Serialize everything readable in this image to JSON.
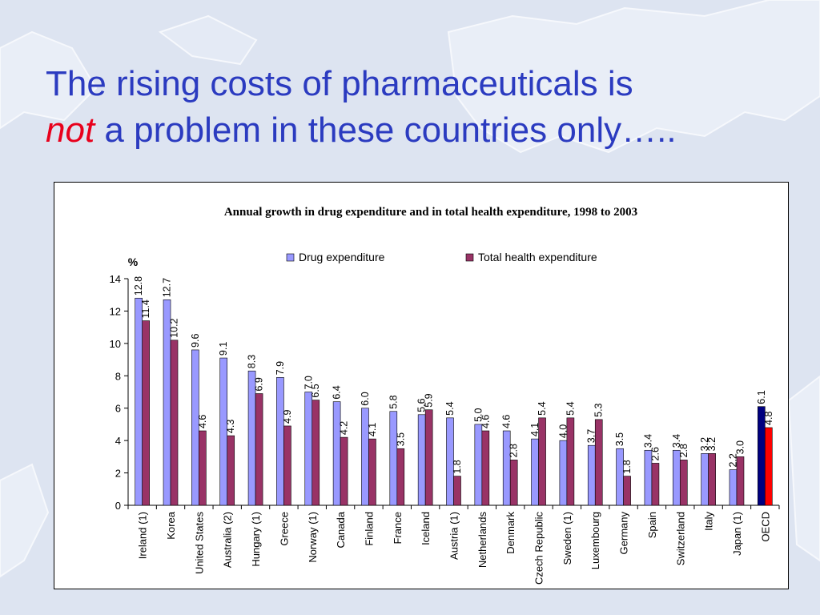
{
  "slide": {
    "title_line1": "The rising costs of pharmaceuticals is",
    "title_emph": "not",
    "title_line2_rest": " a problem in these countries only…..",
    "title_color": "#2b3bc0",
    "emph_color": "#e8001c"
  },
  "chart_data": {
    "type": "bar",
    "title": "Annual growth in drug expenditure and in total health expenditure, 1998 to 2003",
    "ylabel": "%",
    "ylim": [
      0,
      14
    ],
    "yticks": [
      0,
      2,
      4,
      6,
      8,
      10,
      12,
      14
    ],
    "grid": false,
    "legend_position": "top",
    "categories": [
      "Ireland (1)",
      "Korea",
      "United States",
      "Australia (2)",
      "Hungary (1)",
      "Greece",
      "Norway (1)",
      "Canada",
      "Finland",
      "France",
      "Iceland",
      "Austria (1)",
      "Netherlands",
      "Denmark",
      "Czech Republic",
      "Sweden (1)",
      "Luxembourg",
      "Germany",
      "Spain",
      "Switzerland",
      "Italy",
      "Japan (1)",
      "OECD"
    ],
    "series": [
      {
        "name": "Drug expenditure",
        "color": "#9999ff",
        "values": [
          12.8,
          12.7,
          9.6,
          9.1,
          8.3,
          7.9,
          7.0,
          6.4,
          6.0,
          5.8,
          5.6,
          5.4,
          5.0,
          4.6,
          4.1,
          4.0,
          3.7,
          3.5,
          3.4,
          3.4,
          3.2,
          2.2,
          6.1
        ],
        "labels": [
          "12.8",
          "12.7",
          "9.6",
          "9.1",
          "8.3",
          "7.9",
          "7.0",
          "6.4",
          "6.0",
          "5.8",
          "5.6",
          "5.4",
          "5.0",
          "4.6",
          "4.1",
          "4.0",
          "3.7",
          "3.5",
          "3.4",
          "3.4",
          "3.2",
          "2.2",
          "6.1"
        ]
      },
      {
        "name": "Total health expenditure",
        "color": "#993366",
        "values": [
          11.4,
          10.2,
          4.6,
          4.3,
          6.9,
          4.9,
          6.5,
          4.2,
          4.1,
          3.5,
          5.9,
          1.8,
          4.6,
          2.8,
          5.4,
          5.4,
          5.3,
          1.8,
          2.6,
          2.8,
          3.2,
          3.0,
          4.8
        ],
        "labels": [
          "11.4",
          "10.2",
          "4.6",
          "4.3",
          "6.9",
          "4.9",
          "6.5",
          "4.2",
          "4.1",
          "3.5",
          "5.9",
          "1.8",
          "4.6",
          "2.8",
          "5.4",
          "5.4",
          "5.3",
          "1.8",
          "2.6",
          "2.8",
          "3.2",
          "3.0",
          "4.8"
        ]
      }
    ],
    "highlight": {
      "category": "OECD",
      "colors": [
        "#000080",
        "#ff0000"
      ]
    }
  }
}
